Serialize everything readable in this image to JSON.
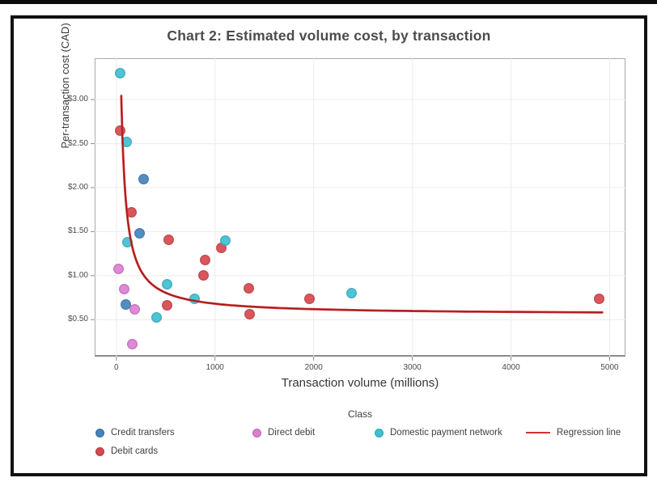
{
  "page": {
    "title": "Chart 2: Estimated volume cost, by transaction"
  },
  "chart_data": {
    "type": "scatter",
    "title": "Chart 2: Estimated volume cost, by transaction",
    "xlabel": "Transaction volume (millions)",
    "ylabel": "Per-transaction cost (CAD)",
    "xlim": [
      -220,
      5160
    ],
    "ylim": [
      0.08,
      3.47
    ],
    "x_ticks": [
      0,
      1000,
      2000,
      3000,
      4000,
      5000
    ],
    "x_tick_labels": [
      "0",
      "1000",
      "2000",
      "3000",
      "4000",
      "5000"
    ],
    "y_ticks": [
      0.5,
      1.0,
      1.5,
      2.0,
      2.5,
      3.0
    ],
    "y_tick_labels": [
      "$0.50",
      "$1.00",
      "$1.50",
      "$2.00",
      "$2.50",
      "$3.00"
    ],
    "grid": true,
    "grid_color": "#ebebeb",
    "legend_title": "Class",
    "legend_position": "bottom",
    "series": [
      {
        "name": "Credit transfers",
        "color": "#4585bd",
        "points": [
          [
            280,
            2.1
          ],
          [
            235,
            1.48
          ],
          [
            95,
            0.67
          ]
        ]
      },
      {
        "name": "Debit cards",
        "color": "#d8484f",
        "points": [
          [
            40,
            2.65
          ],
          [
            155,
            1.72
          ],
          [
            530,
            1.41
          ],
          [
            510,
            0.66
          ],
          [
            885,
            1.0
          ],
          [
            900,
            1.18
          ],
          [
            1065,
            1.32
          ],
          [
            1345,
            0.86
          ],
          [
            1350,
            0.56
          ],
          [
            1960,
            0.74
          ],
          [
            4890,
            0.74
          ]
        ]
      },
      {
        "name": "Direct debit",
        "color": "#dd7fd5",
        "points": [
          [
            25,
            1.08
          ],
          [
            80,
            0.85
          ],
          [
            190,
            0.62
          ],
          [
            160,
            0.22
          ]
        ]
      },
      {
        "name": "Domestic payment network",
        "color": "#3fc1d3",
        "points": [
          [
            35,
            3.3
          ],
          [
            100,
            2.52
          ],
          [
            110,
            1.38
          ],
          [
            410,
            0.53
          ],
          [
            515,
            0.9
          ],
          [
            795,
            0.74
          ],
          [
            1105,
            1.4
          ],
          [
            2385,
            0.8
          ]
        ]
      }
    ],
    "regression": {
      "name": "Regression line",
      "color": "#d62f2f",
      "shadow_color": "#8f1d1d",
      "model": "cost = a + b / volume",
      "a": 0.557,
      "b": 124.3,
      "v_start": 50,
      "v_end": 4925
    }
  },
  "legend": {
    "title": "Class",
    "items": [
      {
        "label": "Credit transfers",
        "color": "#4585bd",
        "type": "dot"
      },
      {
        "label": "Direct debit",
        "color": "#dd7fd5",
        "type": "dot"
      },
      {
        "label": "Domestic payment network",
        "color": "#3fc1d3",
        "type": "dot"
      },
      {
        "label": "Regression line",
        "color": "#d62f2f",
        "type": "line"
      },
      {
        "label": "Debit cards",
        "color": "#d8484f",
        "type": "dot"
      }
    ]
  }
}
